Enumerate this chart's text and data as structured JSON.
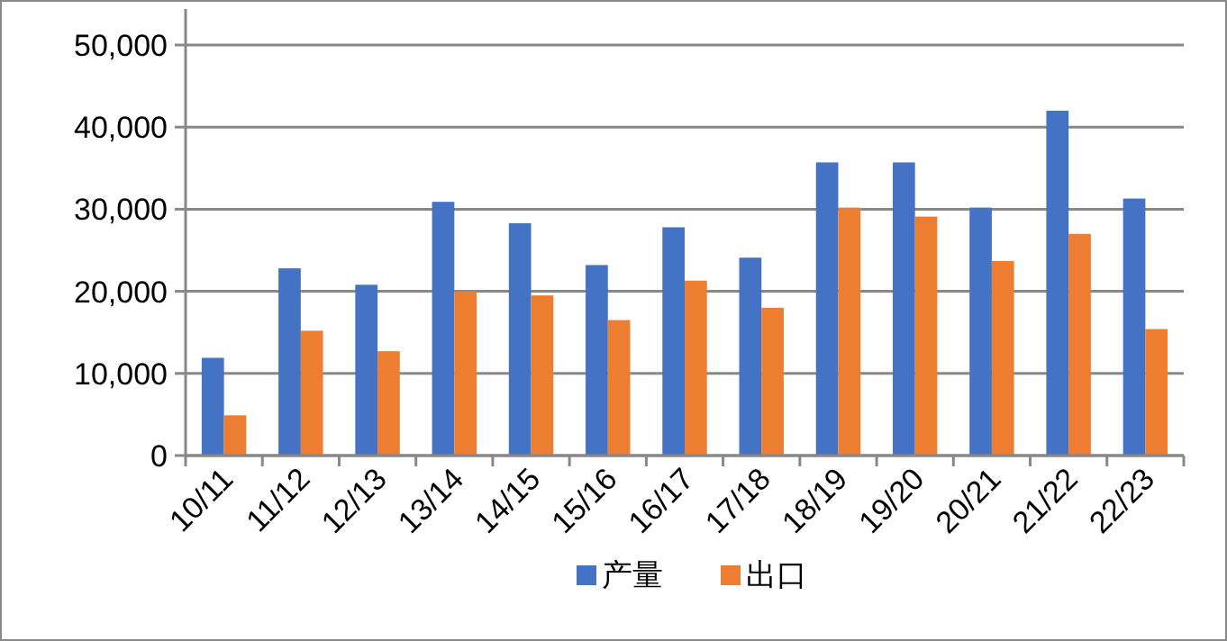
{
  "chart_data": {
    "type": "bar",
    "categories": [
      "10/11",
      "11/12",
      "12/13",
      "13/14",
      "14/15",
      "15/16",
      "16/17",
      "17/18",
      "18/19",
      "19/20",
      "20/21",
      "21/22",
      "22/23"
    ],
    "series": [
      {
        "name": "产量",
        "color": "#4472c4",
        "values": [
          11900,
          22800,
          20800,
          30900,
          28300,
          23200,
          27800,
          24100,
          35700,
          35700,
          30200,
          42000,
          31300
        ]
      },
      {
        "name": "出口",
        "color": "#ed7d31",
        "values": [
          4900,
          15200,
          12700,
          20000,
          19500,
          16500,
          21300,
          18000,
          30200,
          29100,
          23700,
          27000,
          15400
        ]
      }
    ],
    "ylim": [
      0,
      50000
    ],
    "yticks": [
      {
        "value": 0,
        "label": "0"
      },
      {
        "value": 10000,
        "label": "10,000"
      },
      {
        "value": 20000,
        "label": "20,000"
      },
      {
        "value": 30000,
        "label": "30,000"
      },
      {
        "value": 40000,
        "label": "40,000"
      },
      {
        "value": 50000,
        "label": "50,000"
      }
    ],
    "grid": "y",
    "legend": "bottom"
  }
}
